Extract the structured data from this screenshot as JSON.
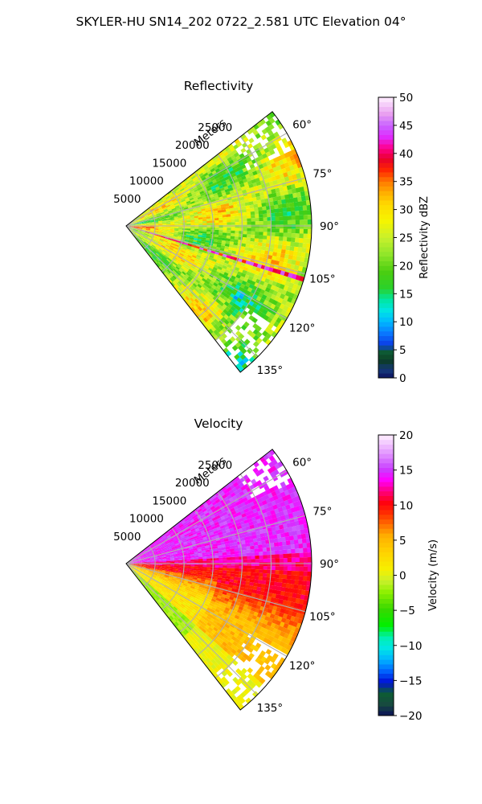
{
  "suptitle": "SKYLER-HU  SN14_202  0722_2.581 UTC Elevation 04°",
  "colors": {
    "grid": "#b0b0b0",
    "ref_cmap": "NWSRef-like",
    "vel_cmap": "NWSVel-like"
  },
  "chart_data": [
    {
      "type": "heatmap",
      "subtype": "polar-sector",
      "title": "Reflectivity",
      "range_label": "Meters",
      "range_ticks": [
        5000,
        10000,
        15000,
        20000,
        25000
      ],
      "range_tick_labels": [
        "5000",
        "10000",
        "15000",
        "20000",
        "25000"
      ],
      "range_max": 32000,
      "azimuth_min_deg": 52,
      "azimuth_max_deg": 142,
      "azimuth_ticks": [
        60,
        75,
        90,
        105,
        120,
        135
      ],
      "azimuth_tick_labels": [
        "60°",
        "75°",
        "90°",
        "105°",
        "120°",
        "135°"
      ],
      "colorbar": {
        "label": "Reflectivity dBZ",
        "min": 0,
        "max": 50,
        "ticks": [
          0,
          5,
          10,
          15,
          20,
          25,
          30,
          35,
          40,
          45,
          50
        ],
        "tick_labels": [
          "0",
          "5",
          "10",
          "15",
          "20",
          "25",
          "30",
          "35",
          "40",
          "45",
          "50"
        ]
      }
    },
    {
      "type": "heatmap",
      "subtype": "polar-sector",
      "title": "Velocity",
      "range_label": "Meters",
      "range_ticks": [
        5000,
        10000,
        15000,
        20000,
        25000
      ],
      "range_tick_labels": [
        "5000",
        "10000",
        "15000",
        "20000",
        "25000"
      ],
      "range_max": 32000,
      "azimuth_min_deg": 52,
      "azimuth_max_deg": 142,
      "azimuth_ticks": [
        60,
        75,
        90,
        105,
        120,
        135
      ],
      "azimuth_tick_labels": [
        "60°",
        "75°",
        "90°",
        "105°",
        "120°",
        "135°"
      ],
      "colorbar": {
        "label": "Velocity (m/s)",
        "min": -20,
        "max": 20,
        "ticks": [
          -20,
          -15,
          -10,
          -5,
          0,
          5,
          10,
          15,
          20
        ],
        "tick_labels": [
          "−20",
          "−15",
          "−10",
          "−5",
          "0",
          "5",
          "10",
          "15",
          "20"
        ]
      }
    }
  ]
}
